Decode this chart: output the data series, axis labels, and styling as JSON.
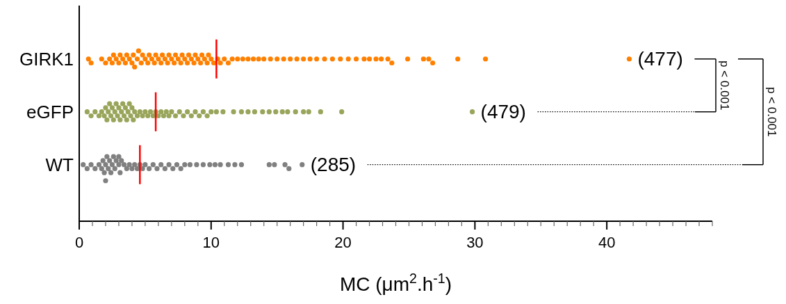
{
  "chart_data": {
    "type": "scatter",
    "orientation": "horizontal",
    "xlabel": "MC (μm$^{2}$.h$^{-1}$)",
    "categories": [
      "GIRK1",
      "eGFP",
      "WT"
    ],
    "xlim": [
      0,
      48
    ],
    "xticks": [
      0,
      {
        "value": 1,
        "label": null
      },
      {
        "value": 2,
        "label": null
      },
      {
        "value": 3,
        "label": null
      },
      {
        "value": 4,
        "label": null
      },
      {
        "value": 5,
        "label": null
      },
      {
        "value": 6,
        "label": null
      },
      {
        "value": 7,
        "label": null
      },
      {
        "value": 8,
        "label": null
      },
      {
        "value": 9,
        "label": null
      },
      10,
      {
        "value": 11,
        "label": null
      },
      {
        "value": 12,
        "label": null
      },
      {
        "value": 13,
        "label": null
      },
      {
        "value": 14,
        "label": null
      },
      {
        "value": 15,
        "label": null
      },
      {
        "value": 16,
        "label": null
      },
      {
        "value": 17,
        "label": null
      },
      {
        "value": 18,
        "label": null
      },
      {
        "value": 19,
        "label": null
      },
      20,
      {
        "value": 21,
        "label": null
      },
      {
        "value": 22,
        "label": null
      },
      {
        "value": 23,
        "label": null
      },
      {
        "value": 24,
        "label": null
      },
      {
        "value": 25,
        "label": null
      },
      {
        "value": 26,
        "label": null
      },
      {
        "value": 27,
        "label": null
      },
      {
        "value": 28,
        "label": null
      },
      {
        "value": 29,
        "label": null
      },
      30,
      {
        "value": 31,
        "label": null
      },
      {
        "value": 32,
        "label": null
      },
      {
        "value": 33,
        "label": null
      },
      {
        "value": 34,
        "label": null
      },
      {
        "value": 35,
        "label": null
      },
      {
        "value": 36,
        "label": null
      },
      {
        "value": 37,
        "label": null
      },
      {
        "value": 38,
        "label": null
      },
      {
        "value": 39,
        "label": null
      },
      40,
      {
        "value": 41,
        "label": null
      },
      {
        "value": 42,
        "label": null
      },
      {
        "value": 43,
        "label": null
      },
      {
        "value": 44,
        "label": null
      },
      {
        "value": 45,
        "label": null
      },
      {
        "value": 46,
        "label": null
      },
      {
        "value": 47,
        "label": null
      },
      {
        "value": 48,
        "label": null
      }
    ],
    "marker": "circle",
    "series": [
      {
        "color": "#ff8000",
        "x": [
          "GIRK1",
          "GIRK1",
          "GIRK1",
          "GIRK1",
          "GIRK1",
          "GIRK1",
          "GIRK1",
          "GIRK1",
          "GIRK1",
          "GIRK1",
          "GIRK1",
          "GIRK1",
          "GIRK1",
          "GIRK1",
          "GIRK1",
          "GIRK1",
          "GIRK1",
          "GIRK1",
          "GIRK1",
          "GIRK1",
          "GIRK1",
          "GIRK1",
          "GIRK1",
          "GIRK1",
          "GIRK1",
          "GIRK1",
          "GIRK1",
          "GIRK1",
          "GIRK1",
          "GIRK1",
          "GIRK1",
          "GIRK1",
          "GIRK1",
          "GIRK1",
          "GIRK1",
          "GIRK1",
          "GIRK1",
          "GIRK1",
          "GIRK1",
          "GIRK1",
          "GIRK1",
          "GIRK1",
          "GIRK1",
          "GIRK1",
          "GIRK1",
          "GIRK1",
          "GIRK1",
          "GIRK1",
          "GIRK1",
          "GIRK1",
          "GIRK1",
          "GIRK1",
          "GIRK1",
          "GIRK1",
          "GIRK1",
          "GIRK1",
          "GIRK1",
          "GIRK1",
          "GIRK1",
          "GIRK1",
          "GIRK1",
          "GIRK1",
          "GIRK1",
          "GIRK1",
          "GIRK1",
          "GIRK1",
          "GIRK1",
          "GIRK1",
          "GIRK1",
          "GIRK1",
          "GIRK1",
          "GIRK1",
          "GIRK1",
          "GIRK1",
          "GIRK1",
          "GIRK1",
          "GIRK1",
          "GIRK1",
          "GIRK1",
          "GIRK1",
          "GIRK1",
          "GIRK1",
          "GIRK1",
          "GIRK1",
          "GIRK1",
          "GIRK1",
          "GIRK1",
          "GIRK1",
          "GIRK1",
          "GIRK1"
        ],
        "values": [
          0.7,
          0.9,
          1.7,
          2.0,
          2.3,
          2.5,
          2.6,
          2.8,
          3.0,
          3.1,
          3.3,
          3.5,
          3.6,
          3.8,
          4.0,
          4.1,
          4.2,
          4.4,
          4.5,
          4.7,
          4.8,
          5.0,
          5.2,
          5.3,
          5.5,
          5.7,
          5.8,
          6.0,
          6.2,
          6.3,
          6.5,
          6.7,
          6.8,
          7.0,
          7.2,
          7.3,
          7.5,
          7.7,
          7.8,
          8.0,
          8.2,
          8.3,
          8.5,
          8.7,
          8.8,
          9.0,
          9.2,
          9.3,
          9.5,
          9.7,
          9.8,
          10.0,
          10.2,
          10.5,
          10.7,
          11.0,
          11.3,
          11.6,
          12.0,
          12.4,
          12.8,
          13.2,
          13.6,
          14.0,
          14.5,
          15.0,
          15.5,
          16.0,
          16.5,
          17.0,
          17.5,
          18.0,
          18.6,
          19.2,
          19.8,
          20.4,
          21.0,
          21.6,
          22.0,
          22.5,
          22.9,
          23.4,
          23.7,
          24.9,
          26.1,
          26.5,
          26.8,
          28.7,
          30.8,
          41.7
        ]
      },
      {
        "color": "#98a55a",
        "x": [
          "eGFP",
          "eGFP",
          "eGFP",
          "eGFP",
          "eGFP",
          "eGFP",
          "eGFP",
          "eGFP",
          "eGFP",
          "eGFP",
          "eGFP",
          "eGFP",
          "eGFP",
          "eGFP",
          "eGFP",
          "eGFP",
          "eGFP",
          "eGFP",
          "eGFP",
          "eGFP",
          "eGFP",
          "eGFP",
          "eGFP",
          "eGFP",
          "eGFP",
          "eGFP",
          "eGFP",
          "eGFP",
          "eGFP",
          "eGFP",
          "eGFP",
          "eGFP",
          "eGFP",
          "eGFP",
          "eGFP",
          "eGFP",
          "eGFP",
          "eGFP",
          "eGFP",
          "eGFP",
          "eGFP",
          "eGFP",
          "eGFP",
          "eGFP",
          "eGFP",
          "eGFP",
          "eGFP",
          "eGFP",
          "eGFP",
          "eGFP",
          "eGFP",
          "eGFP",
          "eGFP",
          "eGFP",
          "eGFP",
          "eGFP",
          "eGFP",
          "eGFP",
          "eGFP",
          "eGFP",
          "eGFP",
          "eGFP",
          "eGFP",
          "eGFP",
          "eGFP",
          "eGFP",
          "eGFP",
          "eGFP",
          "eGFP",
          "eGFP"
        ],
        "values": [
          0.6,
          0.9,
          1.2,
          1.5,
          1.7,
          1.9,
          2.0,
          2.1,
          2.2,
          2.3,
          2.4,
          2.5,
          2.6,
          2.7,
          2.8,
          2.9,
          3.0,
          3.1,
          3.2,
          3.3,
          3.4,
          3.5,
          3.6,
          3.7,
          3.8,
          3.9,
          4.0,
          4.1,
          4.2,
          4.4,
          4.6,
          4.8,
          5.0,
          5.2,
          5.4,
          5.6,
          5.8,
          6.0,
          6.2,
          6.4,
          6.6,
          6.8,
          7.0,
          7.3,
          7.6,
          7.9,
          8.2,
          8.5,
          8.8,
          9.1,
          9.4,
          9.7,
          10.0,
          10.4,
          10.9,
          11.7,
          12.3,
          12.8,
          13.3,
          13.9,
          14.4,
          14.9,
          15.4,
          15.8,
          16.4,
          17.0,
          17.4,
          18.3,
          19.9,
          29.8
        ]
      },
      {
        "color": "#808080",
        "x": [
          "WT",
          "WT",
          "WT",
          "WT",
          "WT",
          "WT",
          "WT",
          "WT",
          "WT",
          "WT",
          "WT",
          "WT",
          "WT",
          "WT",
          "WT",
          "WT",
          "WT",
          "WT",
          "WT",
          "WT",
          "WT",
          "WT",
          "WT",
          "WT",
          "WT",
          "WT",
          "WT",
          "WT",
          "WT",
          "WT",
          "WT",
          "WT",
          "WT",
          "WT",
          "WT",
          "WT",
          "WT",
          "WT",
          "WT",
          "WT",
          "WT",
          "WT",
          "WT",
          "WT",
          "WT",
          "WT",
          "WT",
          "WT",
          "WT",
          "WT",
          "WT",
          "WT",
          "WT",
          "WT",
          "WT"
        ],
        "values": [
          0.3,
          0.6,
          0.9,
          1.2,
          1.5,
          1.7,
          1.8,
          1.9,
          2.0,
          2.1,
          2.2,
          2.3,
          2.4,
          2.5,
          2.6,
          2.7,
          2.8,
          3.0,
          3.1,
          3.2,
          3.4,
          3.6,
          3.8,
          4.0,
          4.2,
          4.4,
          4.6,
          4.8,
          5.0,
          5.3,
          5.6,
          5.9,
          6.2,
          6.5,
          6.8,
          7.1,
          7.4,
          7.7,
          8.0,
          8.4,
          8.9,
          9.4,
          9.9,
          10.3,
          10.7,
          11.3,
          11.8,
          12.3,
          14.4,
          14.8,
          15.6,
          15.9,
          16.9,
          2.0,
          3.0
        ]
      },
      {
        "type": "box",
        "color": "#ff0000",
        "boxes": [
          {
            "low": 10.4,
            "q1": 10.4,
            "median": 10.4,
            "q3": 10.4,
            "high": 10.4
          },
          {
            "low": 5.8,
            "q1": 5.8,
            "median": 5.8,
            "q3": 5.8,
            "high": 5.8
          },
          {
            "low": 4.6,
            "q1": 4.6,
            "median": 4.6,
            "q3": 4.6,
            "high": 4.6
          }
        ]
      }
    ],
    "annotations": [
      "(477)",
      "(479)",
      "(285)",
      "p < 0.001",
      "p < 0.001"
    ]
  }
}
